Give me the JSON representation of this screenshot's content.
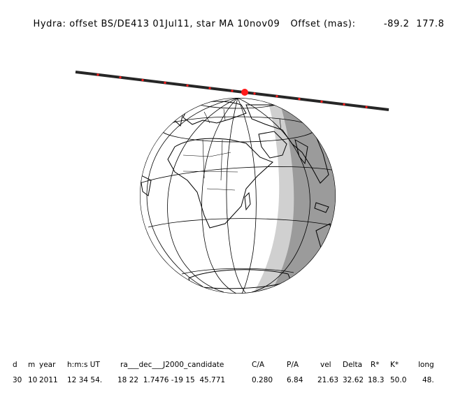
{
  "title": {
    "main": "Hydra: offset BS/DE413 01Jul11, star MA 10nov09",
    "offset_label": "Offset (mas):",
    "offset_x": "-89.2",
    "offset_y": "177.8"
  },
  "table": {
    "headers": [
      "d",
      "m",
      "year",
      "h:m:s UT",
      "ra___dec___J2000_candidate",
      "C/A",
      "P/A",
      "vel",
      "Delta",
      "R*",
      "K*",
      "long"
    ],
    "values": [
      "30",
      "10",
      "2011",
      "12 34 54.",
      "18 22  1.7476 -19 15  45.771",
      "0.280",
      "6.84",
      "21.63",
      "32.62",
      "18.3",
      "50.0",
      "48."
    ]
  },
  "colors": {
    "track": "#262626",
    "track_marks": "#ff1a1a",
    "shadow_light": "#cfcfcf",
    "shadow_dark": "#9a9a9a"
  }
}
